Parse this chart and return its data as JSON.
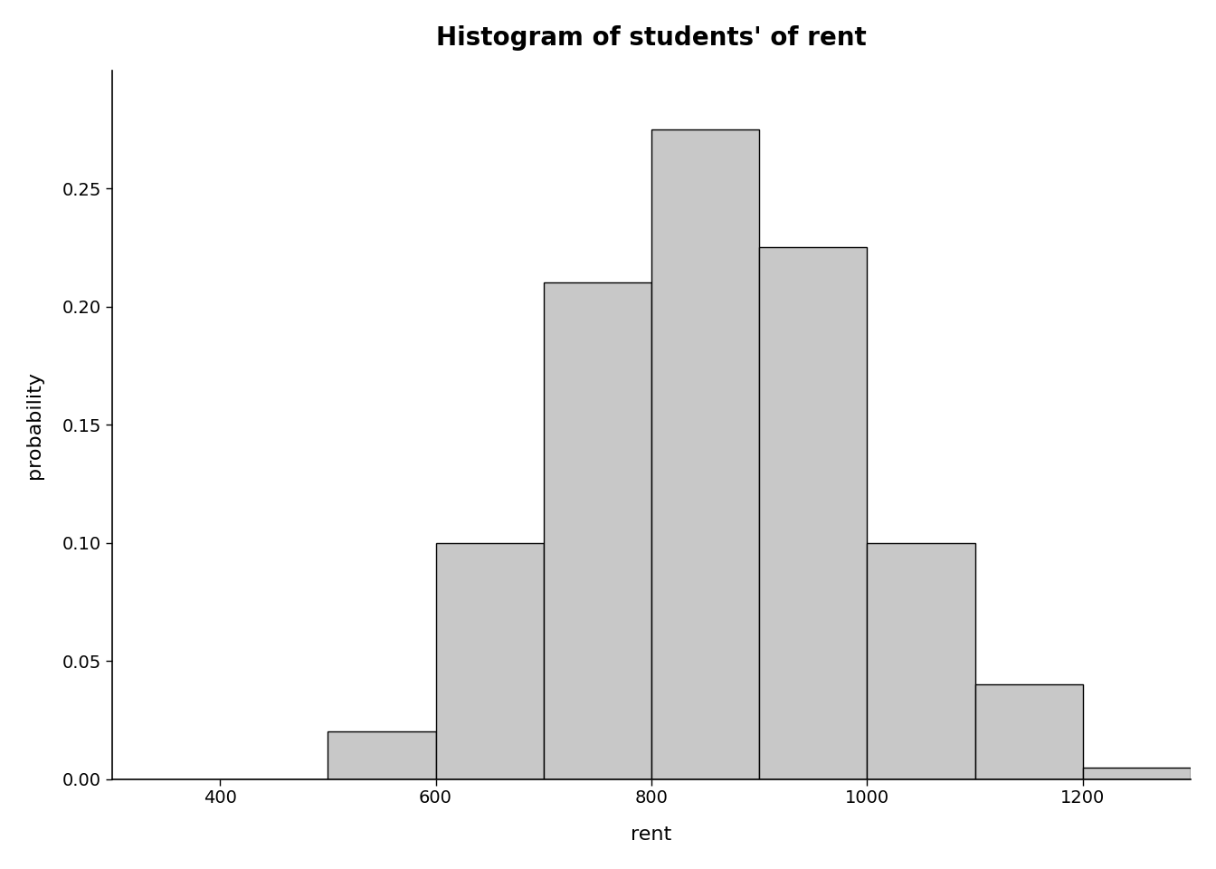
{
  "title": "Histogram of students' of rent",
  "xlabel": "rent",
  "ylabel": "probability",
  "bar_edges": [
    400,
    500,
    600,
    700,
    800,
    900,
    1000,
    1100,
    1200
  ],
  "bar_heights": [
    0.0,
    0.02,
    0.1,
    0.21,
    0.275,
    0.225,
    0.1,
    0.04,
    0.005
  ],
  "bar_color": "#c8c8c8",
  "bar_edge_color": "#000000",
  "xlim": [
    300,
    1300
  ],
  "ylim": [
    0,
    0.3
  ],
  "xticks": [
    400,
    600,
    800,
    1000,
    1200
  ],
  "yticks": [
    0.0,
    0.05,
    0.1,
    0.15,
    0.2,
    0.25
  ],
  "ytick_labels": [
    "0.00",
    "0.05",
    "0.10",
    "0.15",
    "0.20",
    "0.25"
  ],
  "title_fontsize": 20,
  "axis_label_fontsize": 16,
  "tick_fontsize": 14,
  "background_color": "#ffffff"
}
